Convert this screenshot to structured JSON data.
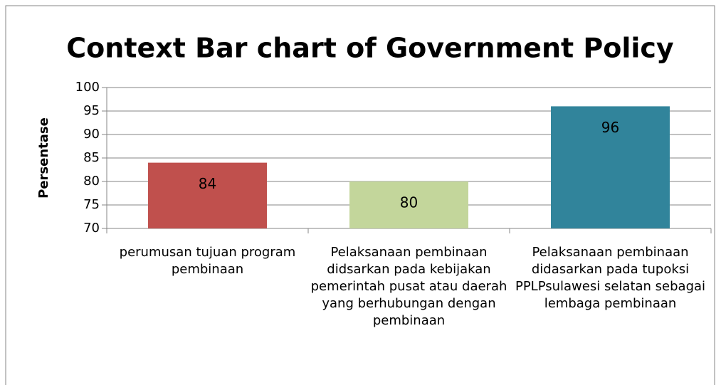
{
  "chart_data": {
    "type": "bar",
    "title": "Context Bar chart of Government Policy",
    "y_label": "Persentase",
    "categories": [
      "perumusan tujuan program pembinaan",
      "Pelaksanaan pembinaan didsarkan pada kebijakan pemerintah pusat atau daerah yang berhubungan dengan pembinaan",
      "Pelaksanaan pembinaan didasarkan pada tupoksi PPLPsulawesi selatan sebagai lembaga pembinaan"
    ],
    "values": [
      84,
      80,
      96
    ],
    "colors": [
      "#c0504d",
      "#c3d69b",
      "#31849b"
    ],
    "ylim": [
      70,
      100
    ],
    "yticks": [
      70,
      75,
      80,
      85,
      90,
      95,
      100
    ],
    "grid": true
  }
}
